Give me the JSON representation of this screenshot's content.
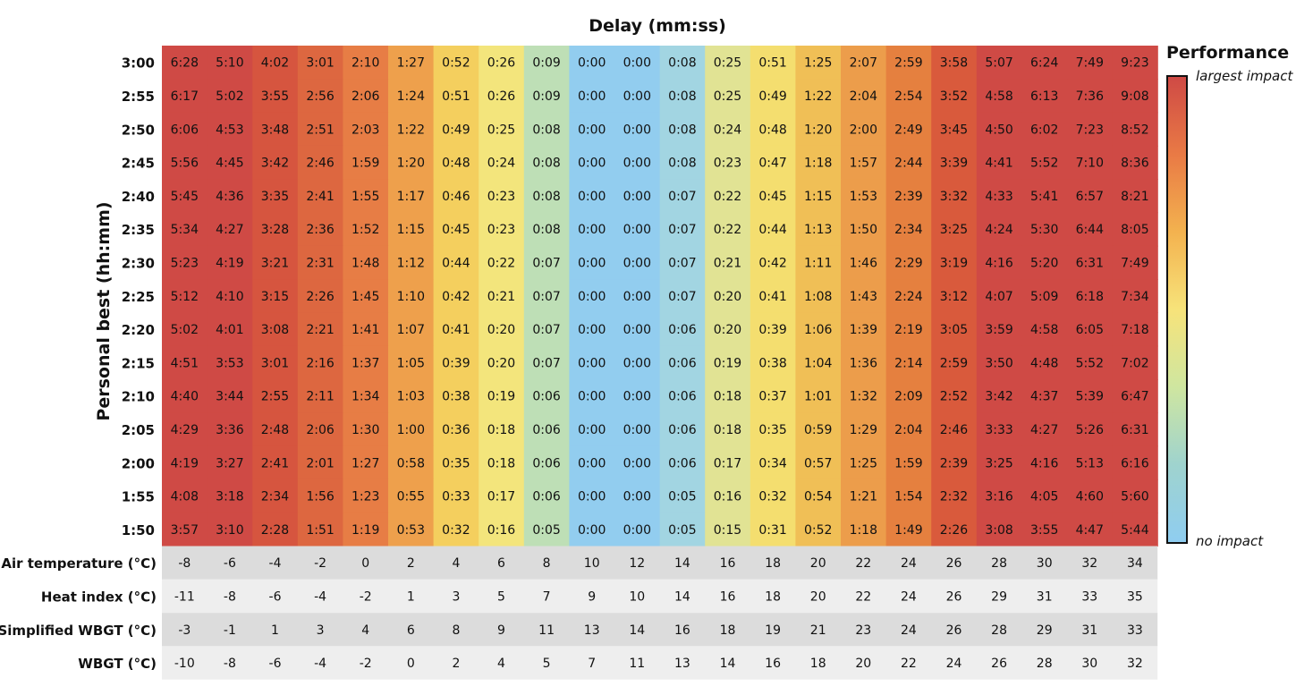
{
  "chart_data": {
    "type": "heatmap",
    "title": "Delay (mm:ss)",
    "ylabel": "Personal best (hh:mm)",
    "legend": {
      "title": "Performance",
      "top_label": "largest impact",
      "bottom_label": "no impact",
      "colors": [
        "#cf4a45",
        "#e97a45",
        "#f3b24f",
        "#f7e37a",
        "#cfe6a0",
        "#9fd3ce",
        "#8fcdf0"
      ]
    },
    "rows": [
      "3:00",
      "2:55",
      "2:50",
      "2:45",
      "2:40",
      "2:35",
      "2:30",
      "2:25",
      "2:20",
      "2:15",
      "2:10",
      "2:05",
      "2:00",
      "1:55",
      "1:50"
    ],
    "values": [
      [
        "6:28",
        "5:10",
        "4:02",
        "3:01",
        "2:10",
        "1:27",
        "0:52",
        "0:26",
        "0:09",
        "0:00",
        "0:00",
        "0:08",
        "0:25",
        "0:51",
        "1:25",
        "2:07",
        "2:59",
        "3:58",
        "5:07",
        "6:24",
        "7:49",
        "9:23"
      ],
      [
        "6:17",
        "5:02",
        "3:55",
        "2:56",
        "2:06",
        "1:24",
        "0:51",
        "0:26",
        "0:09",
        "0:00",
        "0:00",
        "0:08",
        "0:25",
        "0:49",
        "1:22",
        "2:04",
        "2:54",
        "3:52",
        "4:58",
        "6:13",
        "7:36",
        "9:08"
      ],
      [
        "6:06",
        "4:53",
        "3:48",
        "2:51",
        "2:03",
        "1:22",
        "0:49",
        "0:25",
        "0:08",
        "0:00",
        "0:00",
        "0:08",
        "0:24",
        "0:48",
        "1:20",
        "2:00",
        "2:49",
        "3:45",
        "4:50",
        "6:02",
        "7:23",
        "8:52"
      ],
      [
        "5:56",
        "4:45",
        "3:42",
        "2:46",
        "1:59",
        "1:20",
        "0:48",
        "0:24",
        "0:08",
        "0:00",
        "0:00",
        "0:08",
        "0:23",
        "0:47",
        "1:18",
        "1:57",
        "2:44",
        "3:39",
        "4:41",
        "5:52",
        "7:10",
        "8:36"
      ],
      [
        "5:45",
        "4:36",
        "3:35",
        "2:41",
        "1:55",
        "1:17",
        "0:46",
        "0:23",
        "0:08",
        "0:00",
        "0:00",
        "0:07",
        "0:22",
        "0:45",
        "1:15",
        "1:53",
        "2:39",
        "3:32",
        "4:33",
        "5:41",
        "6:57",
        "8:21"
      ],
      [
        "5:34",
        "4:27",
        "3:28",
        "2:36",
        "1:52",
        "1:15",
        "0:45",
        "0:23",
        "0:08",
        "0:00",
        "0:00",
        "0:07",
        "0:22",
        "0:44",
        "1:13",
        "1:50",
        "2:34",
        "3:25",
        "4:24",
        "5:30",
        "6:44",
        "8:05"
      ],
      [
        "5:23",
        "4:19",
        "3:21",
        "2:31",
        "1:48",
        "1:12",
        "0:44",
        "0:22",
        "0:07",
        "0:00",
        "0:00",
        "0:07",
        "0:21",
        "0:42",
        "1:11",
        "1:46",
        "2:29",
        "3:19",
        "4:16",
        "5:20",
        "6:31",
        "7:49"
      ],
      [
        "5:12",
        "4:10",
        "3:15",
        "2:26",
        "1:45",
        "1:10",
        "0:42",
        "0:21",
        "0:07",
        "0:00",
        "0:00",
        "0:07",
        "0:20",
        "0:41",
        "1:08",
        "1:43",
        "2:24",
        "3:12",
        "4:07",
        "5:09",
        "6:18",
        "7:34"
      ],
      [
        "5:02",
        "4:01",
        "3:08",
        "2:21",
        "1:41",
        "1:07",
        "0:41",
        "0:20",
        "0:07",
        "0:00",
        "0:00",
        "0:06",
        "0:20",
        "0:39",
        "1:06",
        "1:39",
        "2:19",
        "3:05",
        "3:59",
        "4:58",
        "6:05",
        "7:18"
      ],
      [
        "4:51",
        "3:53",
        "3:01",
        "2:16",
        "1:37",
        "1:05",
        "0:39",
        "0:20",
        "0:07",
        "0:00",
        "0:00",
        "0:06",
        "0:19",
        "0:38",
        "1:04",
        "1:36",
        "2:14",
        "2:59",
        "3:50",
        "4:48",
        "5:52",
        "7:02"
      ],
      [
        "4:40",
        "3:44",
        "2:55",
        "2:11",
        "1:34",
        "1:03",
        "0:38",
        "0:19",
        "0:06",
        "0:00",
        "0:00",
        "0:06",
        "0:18",
        "0:37",
        "1:01",
        "1:32",
        "2:09",
        "2:52",
        "3:42",
        "4:37",
        "5:39",
        "6:47"
      ],
      [
        "4:29",
        "3:36",
        "2:48",
        "2:06",
        "1:30",
        "1:00",
        "0:36",
        "0:18",
        "0:06",
        "0:00",
        "0:00",
        "0:06",
        "0:18",
        "0:35",
        "0:59",
        "1:29",
        "2:04",
        "2:46",
        "3:33",
        "4:27",
        "5:26",
        "6:31"
      ],
      [
        "4:19",
        "3:27",
        "2:41",
        "2:01",
        "1:27",
        "0:58",
        "0:35",
        "0:18",
        "0:06",
        "0:00",
        "0:00",
        "0:06",
        "0:17",
        "0:34",
        "0:57",
        "1:25",
        "1:59",
        "2:39",
        "3:25",
        "4:16",
        "5:13",
        "6:16"
      ],
      [
        "4:08",
        "3:18",
        "2:34",
        "1:56",
        "1:23",
        "0:55",
        "0:33",
        "0:17",
        "0:06",
        "0:00",
        "0:00",
        "0:05",
        "0:16",
        "0:32",
        "0:54",
        "1:21",
        "1:54",
        "2:32",
        "3:16",
        "4:05",
        "4:60",
        "5:60"
      ],
      [
        "3:57",
        "3:10",
        "2:28",
        "1:51",
        "1:19",
        "0:53",
        "0:32",
        "0:16",
        "0:05",
        "0:00",
        "0:00",
        "0:05",
        "0:15",
        "0:31",
        "0:52",
        "1:18",
        "1:49",
        "2:26",
        "3:08",
        "3:55",
        "4:47",
        "5:44"
      ]
    ],
    "condition_rows": [
      {
        "label": "Air temperature (°C)",
        "values": [
          "-8",
          "-6",
          "-4",
          "-2",
          "0",
          "2",
          "4",
          "6",
          "8",
          "10",
          "12",
          "14",
          "16",
          "18",
          "20",
          "22",
          "24",
          "26",
          "28",
          "30",
          "32",
          "34"
        ]
      },
      {
        "label": "Heat index  (°C)",
        "values": [
          "-11",
          "-8",
          "-6",
          "-4",
          "-2",
          "1",
          "3",
          "5",
          "7",
          "9",
          "10",
          "14",
          "16",
          "18",
          "20",
          "22",
          "24",
          "26",
          "29",
          "31",
          "33",
          "35"
        ]
      },
      {
        "label": "Simplified WBGT (°C)",
        "values": [
          "-3",
          "-1",
          "1",
          "3",
          "4",
          "6",
          "8",
          "9",
          "11",
          "13",
          "14",
          "16",
          "18",
          "19",
          "21",
          "23",
          "24",
          "26",
          "28",
          "29",
          "31",
          "33"
        ]
      },
      {
        "label": "WBGT (°C)",
        "values": [
          "-10",
          "-8",
          "-6",
          "-4",
          "-2",
          "0",
          "2",
          "4",
          "5",
          "7",
          "11",
          "13",
          "14",
          "16",
          "18",
          "20",
          "22",
          "24",
          "26",
          "28",
          "30",
          "32"
        ]
      }
    ],
    "column_colors": [
      "#cf4a45",
      "#cf4a45",
      "#d6553f",
      "#dd6740",
      "#e77d45",
      "#eea04c",
      "#f4cf5e",
      "#f3e57c",
      "#bedfb6",
      "#92cdef",
      "#92cdef",
      "#a2d5e2",
      "#e1e394",
      "#f4de6f",
      "#f0bf56",
      "#ec9d4b",
      "#e5803f",
      "#d95a3c",
      "#cf4a45",
      "#cf4a45",
      "#cf4a45",
      "#cf4a45"
    ],
    "row_band_colors": [
      "#dcdcdc",
      "#eeeeee"
    ]
  }
}
